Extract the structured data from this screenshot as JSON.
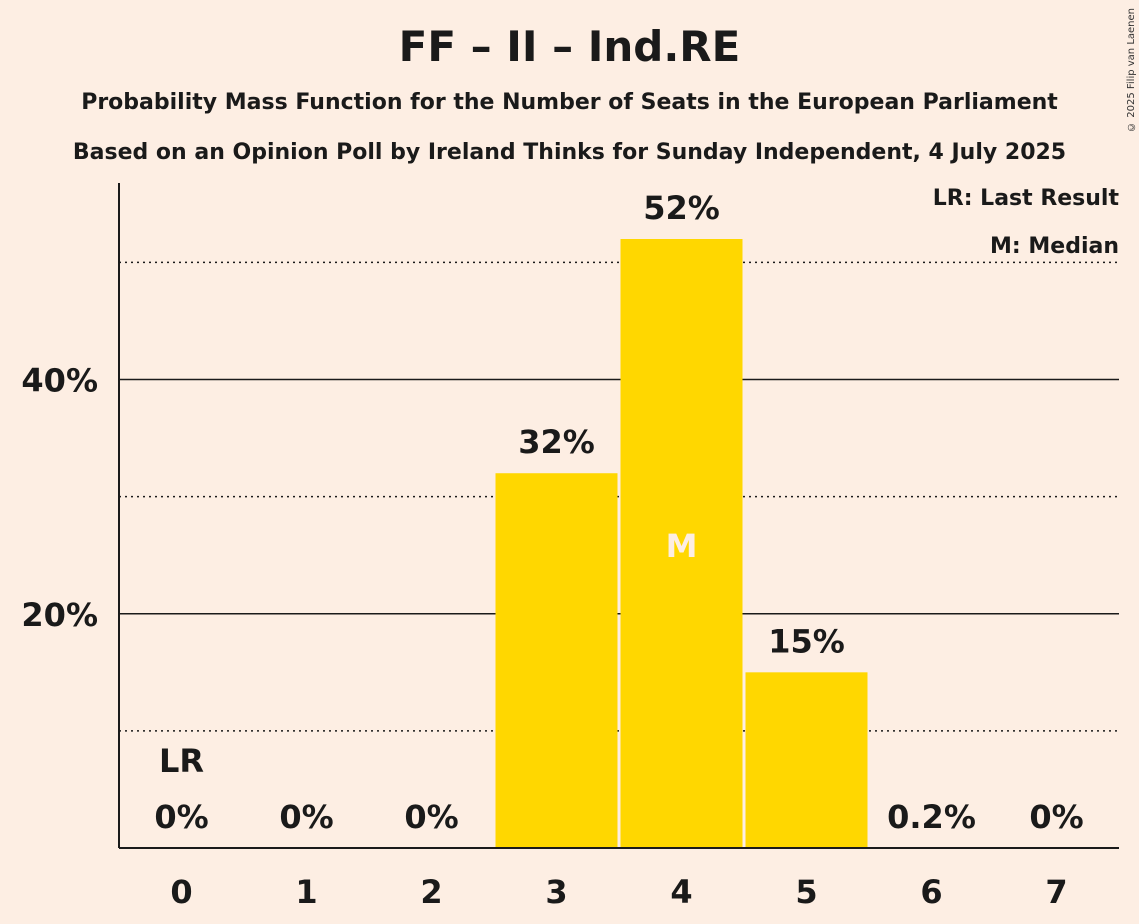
{
  "title": "FF – II – Ind.RE",
  "subtitle_1": "Probability Mass Function for the Number of Seats in the European Parliament",
  "subtitle_2": "Based on an Opinion Poll by Ireland Thinks for Sunday Independent, 4 July 2025",
  "copyright": "© 2025 Filip van Laenen",
  "legend": {
    "last_result": "LR: Last Result",
    "median": "M: Median"
  },
  "colors": {
    "background": "#FDEEE3",
    "bar": "#FFD700",
    "text": "#1A1A1A",
    "median_label": "#FDEEE3"
  },
  "chart_data": {
    "type": "bar",
    "categories": [
      "0",
      "1",
      "2",
      "3",
      "4",
      "5",
      "6",
      "7"
    ],
    "values": [
      0,
      0,
      0,
      32,
      52,
      15,
      0.2,
      0
    ],
    "value_labels": [
      "0%",
      "0%",
      "0%",
      "32%",
      "52%",
      "15%",
      "0.2%",
      "0%"
    ],
    "ylim": [
      0,
      57
    ],
    "yticks": [
      20,
      40
    ],
    "ytick_labels": [
      "20%",
      "40%"
    ],
    "minor_gridlines": [
      10,
      30,
      50
    ],
    "last_result_index": 0,
    "last_result_label": "LR",
    "median_index": 4,
    "median_label": "M",
    "grid": true,
    "legend_position": "top-right"
  }
}
